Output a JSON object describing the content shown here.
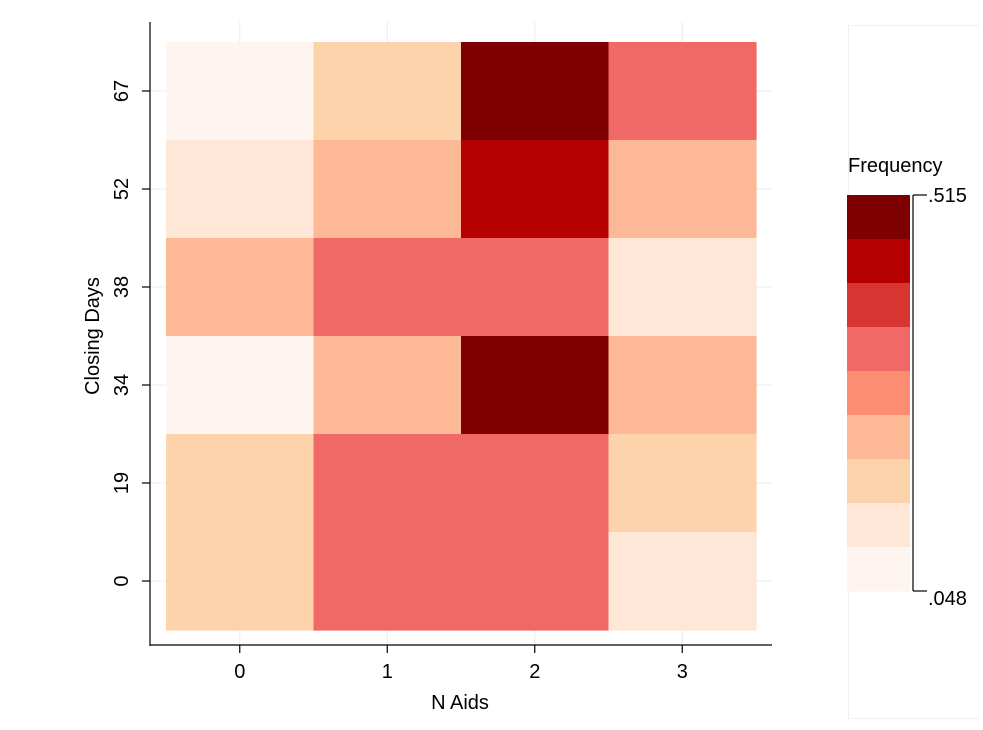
{
  "chart_data": {
    "type": "heatmap",
    "title": "",
    "xlabel": "N Aids",
    "ylabel": "Closing Days",
    "x_categories": [
      "0",
      "1",
      "2",
      "3"
    ],
    "y_categories": [
      "67",
      "52",
      "38",
      "34",
      "19",
      "0"
    ],
    "values": [
      [
        0.07,
        0.2,
        0.515,
        0.36
      ],
      [
        0.12,
        0.28,
        0.47,
        0.28
      ],
      [
        0.28,
        0.36,
        0.41,
        0.12
      ],
      [
        0.07,
        0.28,
        0.515,
        0.28
      ],
      [
        0.2,
        0.41,
        0.41,
        0.2
      ],
      [
        0.2,
        0.41,
        0.41,
        0.12
      ]
    ],
    "colorbar": {
      "title": "Frequency",
      "min_label": ".048",
      "max_label": ".515",
      "bins": [
        {
          "lo": 0.048,
          "hi": 0.1,
          "color": "#fff5f0"
        },
        {
          "lo": 0.1,
          "hi": 0.152,
          "color": "#fee7d6"
        },
        {
          "lo": 0.152,
          "hi": 0.204,
          "color": "#fdd3ab"
        },
        {
          "lo": 0.204,
          "hi": 0.255,
          "color": "#fdb896"
        },
        {
          "lo": 0.255,
          "hi": 0.307,
          "color": "#fdb896"
        },
        {
          "lo": 0.307,
          "hi": 0.359,
          "color": "#fc8d72"
        },
        {
          "lo": 0.359,
          "hi": 0.411,
          "color": "#f16966"
        },
        {
          "lo": 0.411,
          "hi": 0.463,
          "color": "#d73532"
        },
        {
          "lo": 0.463,
          "hi": 0.49,
          "color": "#b40000"
        },
        {
          "lo": 0.49,
          "hi": 0.515,
          "color": "#7e0000"
        }
      ],
      "legend_colors": [
        "#7e0000",
        "#b40000",
        "#d73532",
        "#f16966",
        "#fc8d72",
        "#fdb896",
        "#fdd3ab",
        "#fee7d6",
        "#fff5f0"
      ]
    },
    "grid": true,
    "legend_position": "right"
  }
}
